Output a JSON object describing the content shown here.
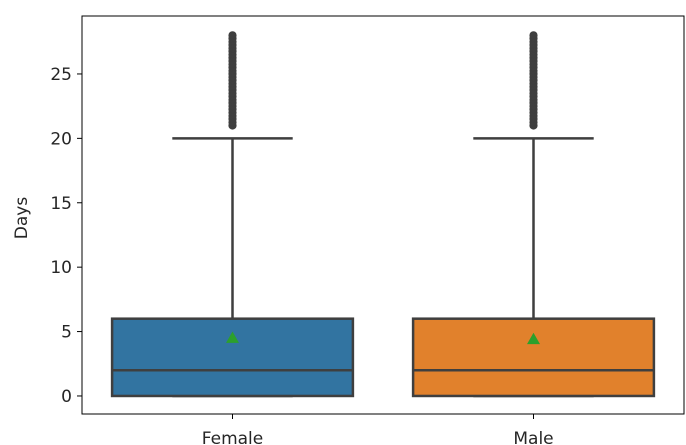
{
  "chart_data": {
    "type": "box",
    "title": "",
    "xlabel": "",
    "ylabel": "Days",
    "ylim": [
      -1.4,
      29.5
    ],
    "yticks": [
      0,
      5,
      10,
      15,
      20,
      25
    ],
    "grid": false,
    "legend": "none",
    "categories": [
      "Female",
      "Male"
    ],
    "series": [
      {
        "category": "Female",
        "color": "#3274a1",
        "whislo": 0,
        "q1": 0,
        "median": 2,
        "q3": 6,
        "whishi": 20,
        "mean": 4.5,
        "fliers": [
          21,
          22,
          23,
          24,
          25,
          26,
          27,
          28
        ]
      },
      {
        "category": "Male",
        "color": "#e1812c",
        "whislo": 0,
        "q1": 0,
        "median": 2,
        "q3": 6,
        "whishi": 20,
        "mean": 4.4,
        "fliers": [
          21,
          22,
          23,
          24,
          25,
          26,
          27,
          28
        ]
      }
    ],
    "mean_marker_color": "#2ca02c",
    "line_color": "#3f3f3f"
  }
}
